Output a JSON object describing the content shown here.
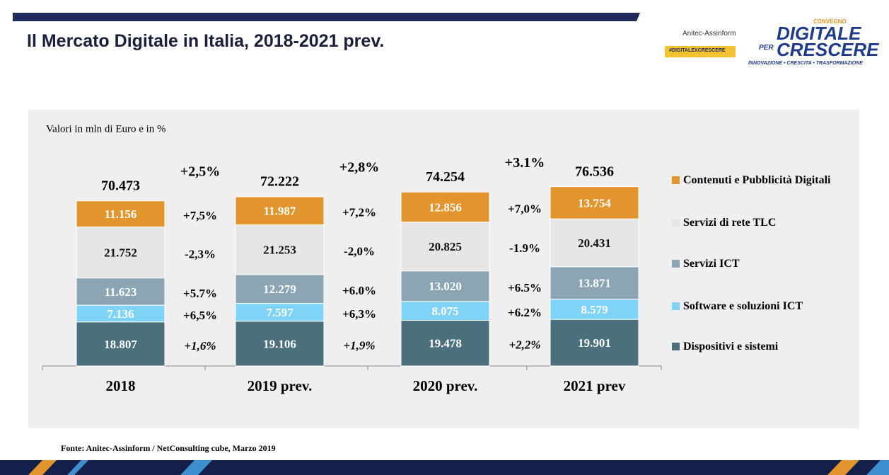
{
  "header": {
    "title": "Il Mercato Digitale in Italia, 2018-2021 prev.",
    "logo_left": "Anitec-Assinform",
    "logo_tag": "#DIGITALEXCRESCERE",
    "logo_kicker": "CONVEGNO",
    "logo_line1": "DIGITALE",
    "logo_per": "PER",
    "logo_line2": "CRESCERE",
    "logo_motto": "INNOVAZIONE • CRESCITA • TRASFORMAZIONE"
  },
  "source": "Fonte: Anitec-Assinform / NetConsulting cube, Marzo  2019",
  "chart_data": {
    "type": "stacked-bar",
    "subtitle": "Valori in mln di Euro e in %",
    "categories": [
      "2018",
      "2019 prev.",
      "2020 prev.",
      "2021 prev"
    ],
    "series": [
      {
        "name": "Dispositivi e sistemi",
        "color": "#4b6f7c",
        "values": [
          18807,
          19106,
          19478,
          19901
        ],
        "value_labels": [
          "18.807",
          "19.106",
          "19.478",
          "19.901"
        ],
        "growth_labels": [
          "+1,6%",
          "+1,9%",
          "+2,2%"
        ]
      },
      {
        "name": "Software e soluzioni ICT",
        "color": "#7fd3f7",
        "values": [
          7136,
          7597,
          8075,
          8579
        ],
        "value_labels": [
          "7.136",
          "7.597",
          "8.075",
          "8.579"
        ],
        "growth_labels": [
          "+6,5%",
          "+6,3%",
          "+6.2%"
        ]
      },
      {
        "name": "Servizi ICT",
        "color": "#8ba5b5",
        "values": [
          11623,
          12279,
          13020,
          13871
        ],
        "value_labels": [
          "11.623",
          "12.279",
          "13.020",
          "13.871"
        ],
        "growth_labels": [
          "+5.7%",
          "+6.0%",
          "+6.5%"
        ]
      },
      {
        "name": "Servizi di rete TLC",
        "color": "#e6e6e6",
        "values": [
          21752,
          21253,
          20825,
          20431
        ],
        "value_labels": [
          "21.752",
          "21.253",
          "20.825",
          "20.431"
        ],
        "growth_labels": [
          "-2,3%",
          "-2,0%",
          "-1.9%"
        ]
      },
      {
        "name": "Contenuti e Pubblicità Digitali",
        "color": "#e3952d",
        "values": [
          11156,
          11987,
          12856,
          13754
        ],
        "value_labels": [
          "11.156",
          "11.987",
          "12.856",
          "13.754"
        ],
        "growth_labels": [
          "+7,5%",
          "+7,2%",
          "+7,0%"
        ]
      }
    ],
    "totals": {
      "values": [
        70473,
        72222,
        74254,
        76536
      ],
      "value_labels": [
        "70.473",
        "72.222",
        "74.254",
        "76.536"
      ],
      "growth_labels": [
        "+2,5%",
        "+2,8%",
        "+3.1%"
      ]
    }
  }
}
